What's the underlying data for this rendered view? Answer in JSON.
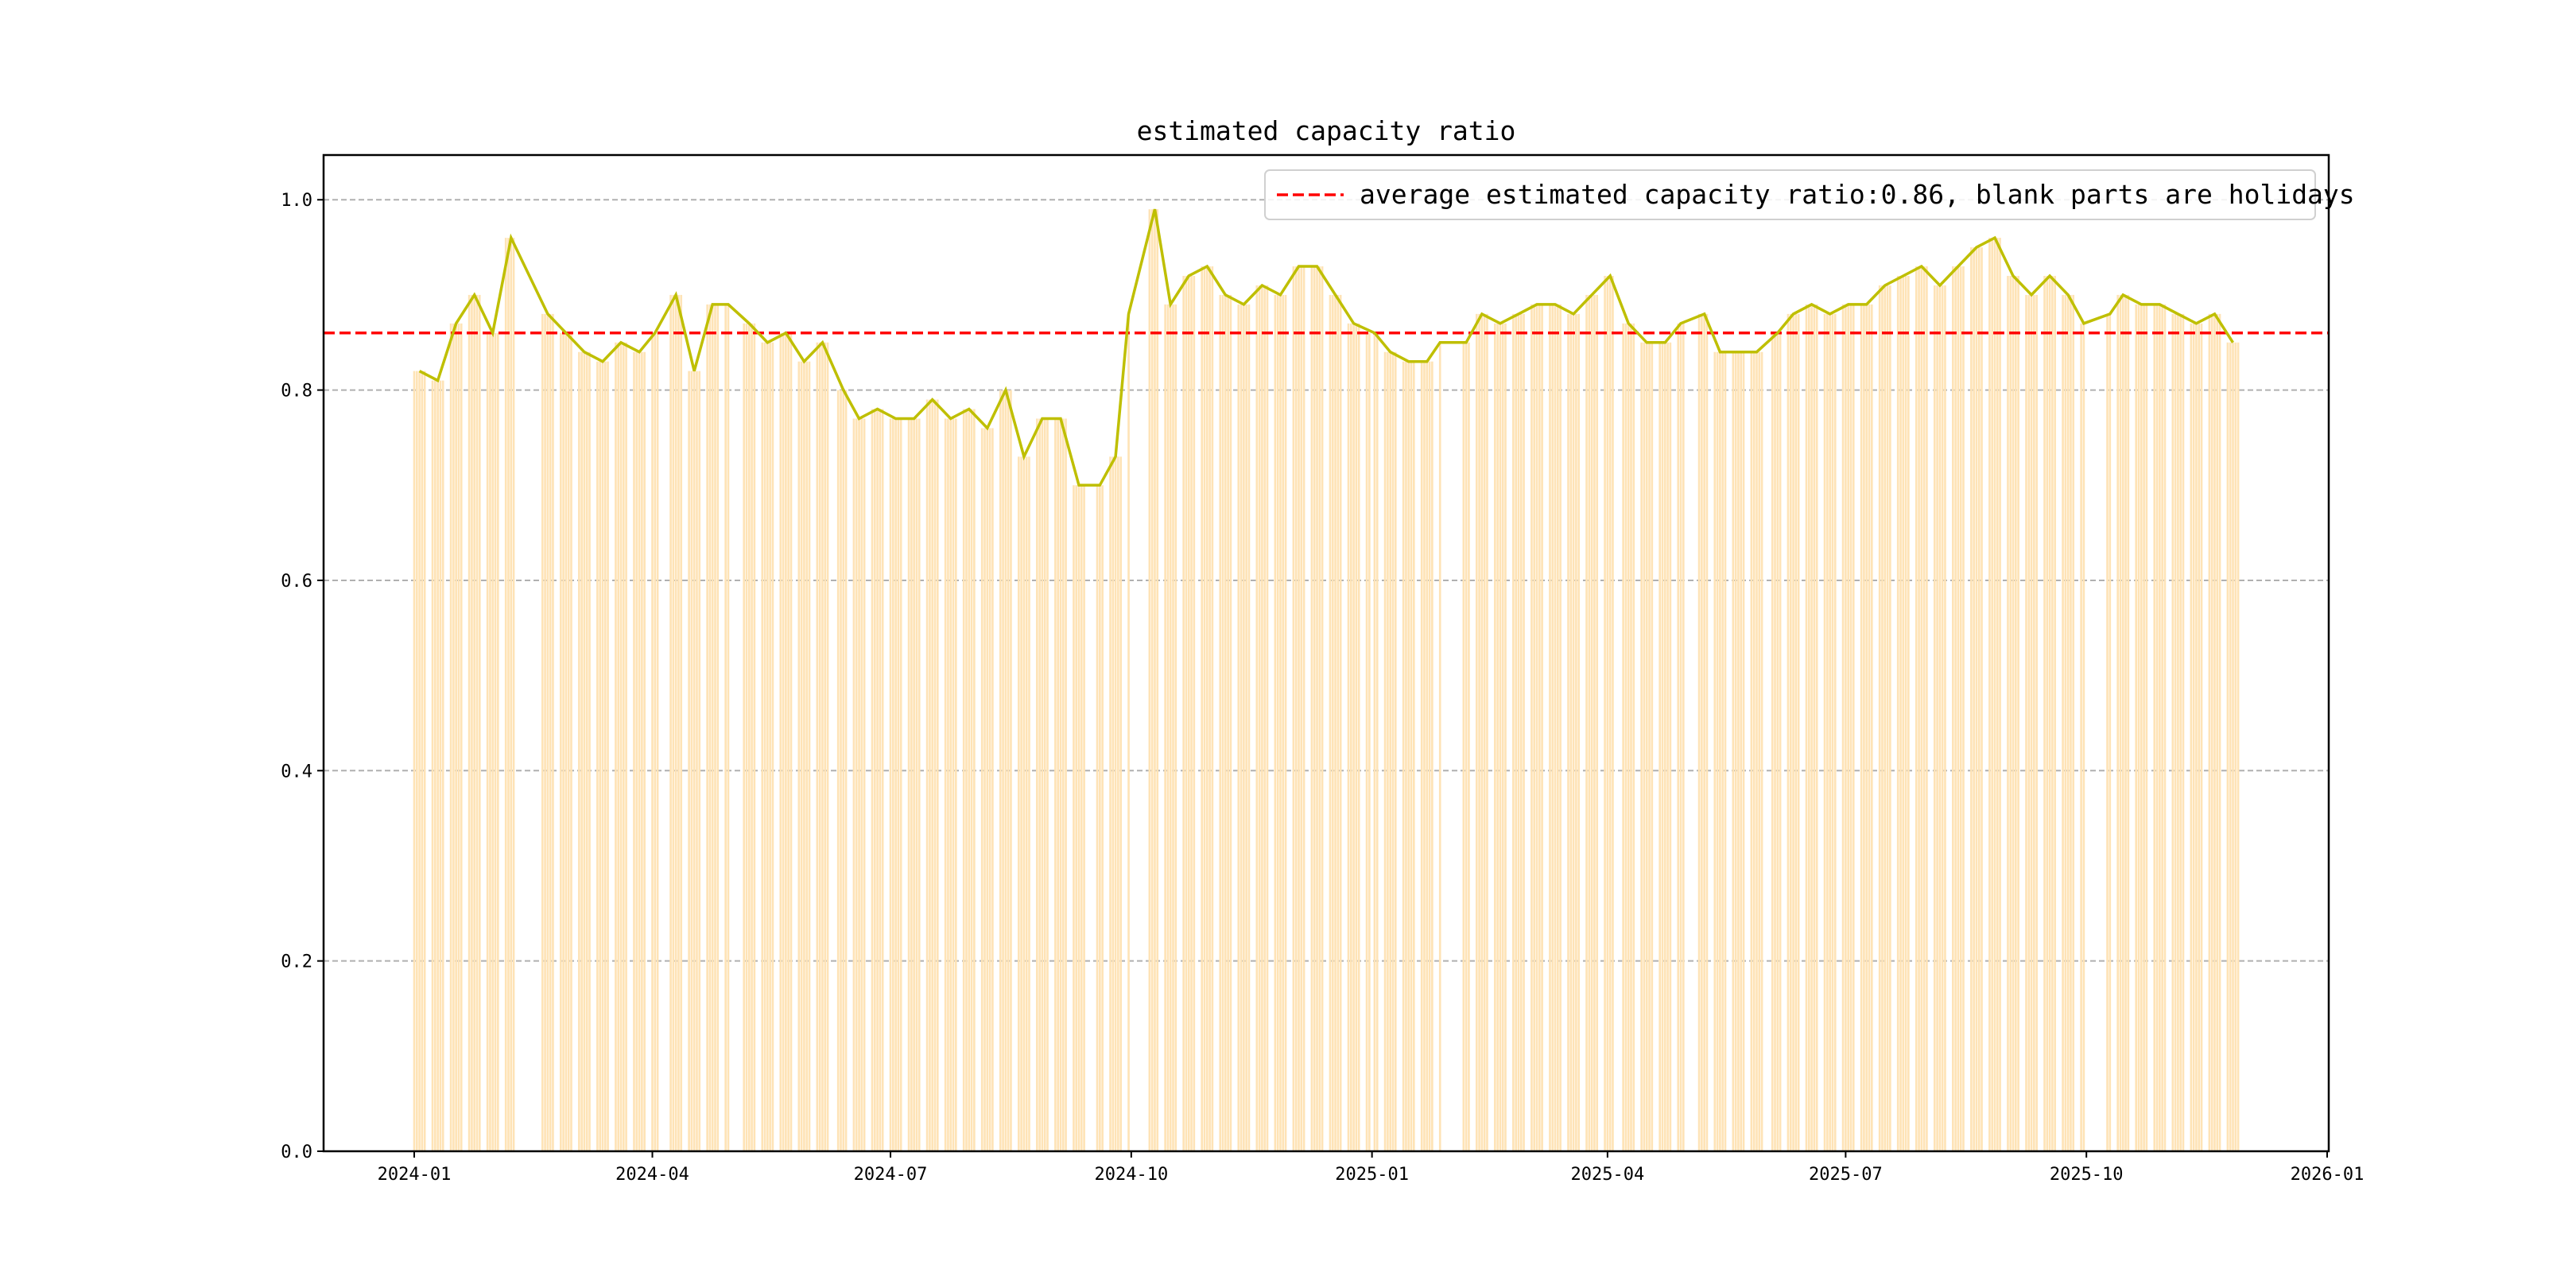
{
  "chart_data": {
    "type": "bar+line",
    "title": "estimated capacity ratio",
    "xlabel": "",
    "ylabel": "",
    "xlim": [
      "2023-12-08",
      "2026-01-01"
    ],
    "ylim": [
      0,
      1.047
    ],
    "grid": "y-dashed",
    "x_ticks": [
      "2024-01",
      "2024-04",
      "2024-07",
      "2024-10",
      "2025-01",
      "2025-04",
      "2025-07",
      "2025-10",
      "2026-01"
    ],
    "y_ticks": [
      "0.0",
      "0.2",
      "0.4",
      "0.6",
      "0.8",
      "1.0"
    ],
    "average": 0.86,
    "legend": {
      "placement": "top-right",
      "label": "average estimated capacity ratio:0.86, blank parts are holidays"
    },
    "colors": {
      "bar": "#fee3b6",
      "line": "#bfbf00",
      "average": "#ff0000",
      "grid": "#b0b0b0"
    },
    "week_start": "2024-01-01",
    "data_end": "2025-11-28",
    "holidays": [
      [
        "2024-02-09",
        "2024-02-18"
      ],
      [
        "2024-04-04",
        "2024-04-06"
      ],
      [
        "2024-05-01",
        "2024-05-05"
      ],
      [
        "2024-06-10",
        "2024-06-10"
      ],
      [
        "2024-09-16",
        "2024-09-17"
      ],
      [
        "2024-10-01",
        "2024-10-07"
      ],
      [
        "2025-01-01",
        "2025-01-01"
      ],
      [
        "2025-01-28",
        "2025-02-04"
      ],
      [
        "2025-04-04",
        "2025-04-04"
      ],
      [
        "2025-05-01",
        "2025-05-05"
      ],
      [
        "2025-06-02",
        "2025-06-02"
      ],
      [
        "2025-10-01",
        "2025-10-08"
      ]
    ],
    "weekly_values": [
      0.82,
      0.81,
      0.87,
      0.9,
      0.86,
      0.96,
      null,
      0.88,
      0.86,
      0.84,
      0.83,
      0.85,
      0.84,
      0.86,
      0.9,
      0.82,
      0.89,
      0.89,
      0.87,
      0.85,
      0.86,
      0.83,
      0.85,
      0.8,
      0.77,
      0.78,
      0.77,
      0.77,
      0.79,
      0.77,
      0.78,
      0.76,
      0.8,
      0.73,
      0.77,
      0.77,
      0.7,
      0.7,
      0.73,
      0.88,
      0.99,
      0.89,
      0.92,
      0.93,
      0.9,
      0.89,
      0.91,
      0.9,
      0.93,
      0.93,
      0.9,
      0.87,
      0.86,
      0.84,
      0.83,
      0.83,
      0.85,
      0.85,
      0.88,
      0.87,
      0.88,
      0.89,
      0.89,
      0.88,
      0.9,
      0.92,
      0.87,
      0.85,
      0.85,
      0.87,
      0.88,
      0.84,
      0.84,
      0.84,
      0.86,
      0.88,
      0.89,
      0.88,
      0.89,
      0.89,
      0.91,
      0.92,
      0.93,
      0.91,
      0.93,
      0.95,
      0.96,
      0.92,
      0.9,
      0.92,
      0.9,
      0.87,
      0.88,
      0.9,
      0.89,
      0.89,
      0.88,
      0.87,
      0.88,
      0.85
    ]
  }
}
